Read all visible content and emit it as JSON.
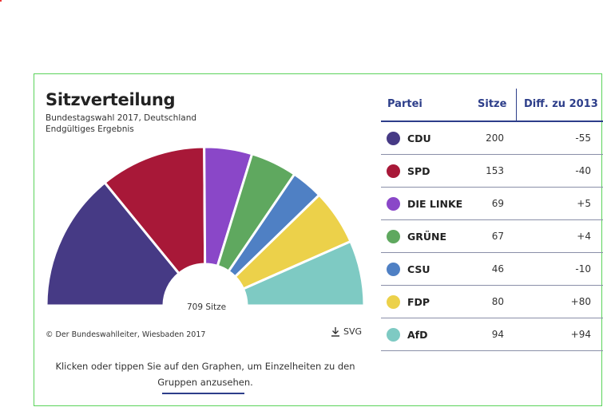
{
  "chart": {
    "title": "Sitzverteilung",
    "subtitle_line1": "Bundestagswahl 2017, Deutschland",
    "subtitle_line2": "Endgültiges Ergebnis",
    "center_label": "709 Sitze",
    "source": "© Der Bundeswahlleiter, Wiesbaden 2017",
    "svg_button": "SVG",
    "hint": "Klicken oder tippen Sie auf den Graphen, um Einzelheiten zu den Gruppen anzusehen."
  },
  "table": {
    "headers": {
      "party": "Partei",
      "seats": "Sitze",
      "diff": "Diff. zu 2013"
    },
    "rows": [
      {
        "name": "CDU",
        "seats": "200",
        "diff": "-55",
        "color": "#463a85"
      },
      {
        "name": "SPD",
        "seats": "153",
        "diff": "-40",
        "color": "#a81838"
      },
      {
        "name": "DIE LINKE",
        "seats": "69",
        "diff": "+5",
        "color": "#8a47c8"
      },
      {
        "name": "GRÜNE",
        "seats": "67",
        "diff": "+4",
        "color": "#5fa85f"
      },
      {
        "name": "CSU",
        "seats": "46",
        "diff": "-10",
        "color": "#4f80c4"
      },
      {
        "name": "FDP",
        "seats": "80",
        "diff": "+80",
        "color": "#ecd14a"
      },
      {
        "name": "AfD",
        "seats": "94",
        "diff": "+94",
        "color": "#7ecac3"
      }
    ]
  },
  "chart_data": {
    "type": "pie",
    "title": "Sitzverteilung",
    "categories": [
      "CDU",
      "SPD",
      "DIE LINKE",
      "GRÜNE",
      "CSU",
      "FDP",
      "AfD"
    ],
    "values": [
      200,
      153,
      69,
      67,
      46,
      80,
      94
    ],
    "colors": [
      "#463a85",
      "#a81838",
      "#8a47c8",
      "#5fa85f",
      "#4f80c4",
      "#ecd14a",
      "#7ecac3"
    ],
    "total": 709,
    "shape": "half-donut",
    "legend": "table-right"
  }
}
